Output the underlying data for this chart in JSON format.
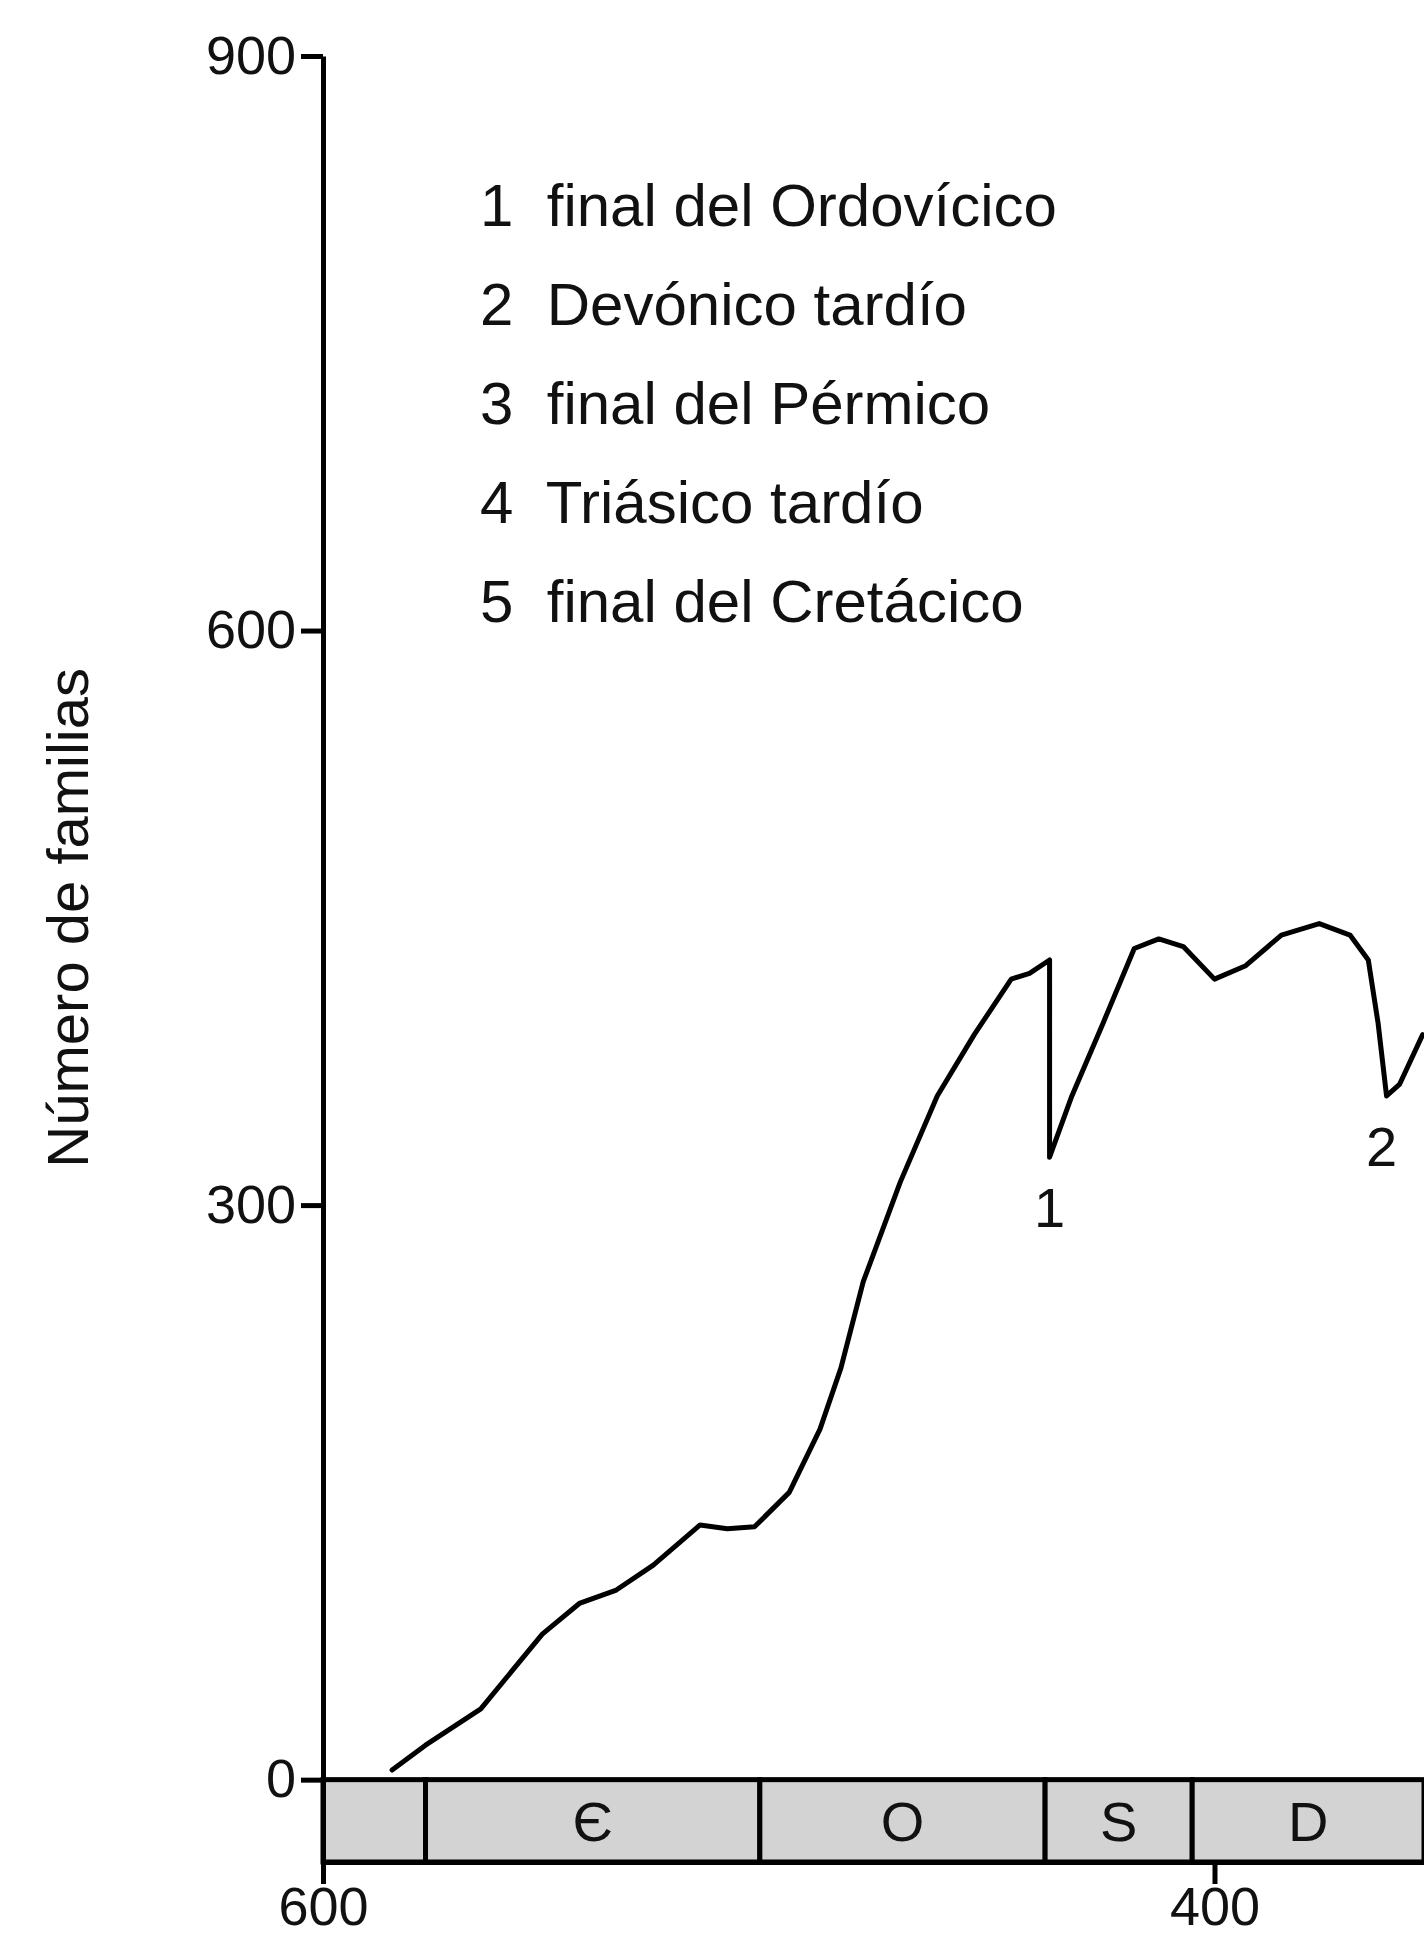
{
  "chart_data": {
    "type": "line",
    "ylabel": "Número de familias",
    "x": [
      584.5,
      577,
      564.6,
      550.8,
      542.5,
      534.2,
      525.9,
      515.4,
      509.3,
      503.2,
      495.4,
      488.5,
      483.8,
      478.8,
      470.5,
      462.2,
      453.9,
      445.6,
      441.5,
      437,
      437,
      432,
      425,
      418,
      412.5,
      407,
      400,
      393,
      385,
      376.5,
      369.6,
      365.5,
      363.3,
      361.4,
      358.5,
      353.3
    ],
    "series": [
      {
        "color": "#000000",
        "values": [
          5,
          18,
          37,
          76,
          92,
          99,
          112,
          133,
          131,
          132,
          150,
          183,
          215,
          260,
          312,
          357,
          389,
          418,
          421,
          428,
          325,
          357,
          395,
          434,
          439,
          435,
          418,
          425,
          441,
          447,
          441,
          428,
          395,
          357,
          363,
          389
        ]
      }
    ],
    "xlim": [
      600,
      353
    ],
    "xticks": [
      600,
      400
    ],
    "ylim": [
      -43,
      900
    ],
    "yticks": [
      0,
      300,
      600,
      900
    ],
    "bands": [
      {
        "axis": "x",
        "from": 600,
        "to": 577,
        "label": null,
        "color": "#d3d3d3"
      },
      {
        "axis": "x",
        "from": 577,
        "to": 502,
        "label": "Є",
        "color": "#d3d3d3"
      },
      {
        "axis": "x",
        "from": 502,
        "to": 438,
        "label": "O",
        "color": "#d3d3d3"
      },
      {
        "axis": "x",
        "from": 438,
        "to": 405,
        "label": "S",
        "color": "#d3d3d3"
      },
      {
        "axis": "x",
        "from": 405,
        "to": 353,
        "label": "D",
        "color": "#d3d3d3"
      }
    ],
    "annotations": [
      "1  final del Ordovícico",
      "2  Devónico tardío",
      "3  final del Pérmico",
      "4  Triásico tardío",
      "5  final del Cretácico",
      {
        "text": "1",
        "x": 437,
        "y": 325
      },
      {
        "text": "2",
        "x": 362.5,
        "y": 357
      }
    ],
    "grid": false,
    "marker": "none",
    "line_style": "solid"
  }
}
